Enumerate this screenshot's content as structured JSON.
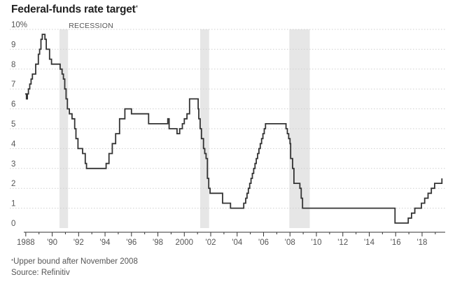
{
  "title": "Federal-funds rate target",
  "title_mark": "*",
  "footnote_mark": "*",
  "footnote": "Upper bound after November 2008",
  "source": "Source: Refinitiv",
  "recession_label": "RECESSION",
  "colors": {
    "line": "#333333",
    "recession": "#e6e6e6",
    "grid": "#cfcfcf",
    "axis": "#333333"
  },
  "chart_data": {
    "type": "line",
    "title": "Federal-funds rate target",
    "xlabel": "",
    "ylabel": "",
    "xlim": [
      1987.85,
      2019.75
    ],
    "ylim": [
      0,
      10
    ],
    "yticks": [
      0,
      1,
      2,
      3,
      4,
      5,
      6,
      7,
      8,
      9,
      10
    ],
    "ytick_labels": [
      "0",
      "1",
      "2",
      "3",
      "4",
      "5",
      "6",
      "7",
      "8",
      "9",
      "10%"
    ],
    "xticks": [
      1988,
      1990,
      1992,
      1994,
      1996,
      1998,
      2000,
      2002,
      2004,
      2006,
      2008,
      2010,
      2012,
      2014,
      2016,
      2018
    ],
    "xtick_labels": [
      "1988",
      "'90",
      "'92",
      "'94",
      "'96",
      "'98",
      "2000",
      "'02",
      "'04",
      "'06",
      "'08",
      "'10",
      "'12",
      "'14",
      "'16",
      "'18"
    ],
    "grid": true,
    "step": true,
    "recessions": [
      [
        1990.55,
        1991.2
      ],
      [
        2001.2,
        2001.88
      ],
      [
        2007.95,
        2009.5
      ]
    ],
    "x": [
      1987.95,
      1988.05,
      1988.12,
      1988.2,
      1988.3,
      1988.4,
      1988.5,
      1988.6,
      1988.75,
      1988.95,
      1989.05,
      1989.15,
      1989.25,
      1989.35,
      1989.45,
      1989.55,
      1989.65,
      1989.8,
      1989.95,
      1990.3,
      1990.6,
      1990.75,
      1990.85,
      1990.95,
      1991.05,
      1991.15,
      1991.3,
      1991.5,
      1991.7,
      1991.8,
      1991.95,
      1992.3,
      1992.5,
      1992.6,
      1992.75,
      1994.08,
      1994.3,
      1994.55,
      1994.8,
      1995.1,
      1995.5,
      1996.0,
      1997.3,
      1998.75,
      1998.85,
      1999.45,
      1999.65,
      1999.85,
      2000.0,
      2000.2,
      2000.4,
      2001.05,
      2001.1,
      2001.2,
      2001.3,
      2001.45,
      2001.55,
      2001.65,
      2001.75,
      2001.85,
      2001.95,
      2002.9,
      2003.5,
      2004.5,
      2004.65,
      2004.75,
      2004.85,
      2004.95,
      2005.05,
      2005.15,
      2005.25,
      2005.35,
      2005.45,
      2005.55,
      2005.65,
      2005.75,
      2005.85,
      2005.95,
      2006.05,
      2006.15,
      2006.3,
      2006.45,
      2007.7,
      2007.8,
      2007.9,
      2008.0,
      2008.05,
      2008.2,
      2008.3,
      2008.75,
      2008.85,
      2008.95,
      2015.95,
      2016.95,
      2017.2,
      2017.45,
      2017.95,
      2018.2,
      2018.45,
      2018.7,
      2018.95,
      2019.5
    ],
    "y": [
      6.75,
      6.5,
      6.75,
      7.0,
      7.25,
      7.5,
      7.75,
      7.75,
      8.25,
      8.75,
      9.0,
      9.5,
      9.75,
      9.75,
      9.5,
      9.0,
      9.0,
      8.5,
      8.25,
      8.25,
      8.0,
      7.75,
      7.5,
      7.0,
      6.5,
      6.0,
      5.75,
      5.5,
      5.0,
      4.5,
      4.0,
      3.75,
      3.25,
      3.0,
      3.0,
      3.25,
      3.75,
      4.25,
      4.75,
      5.5,
      6.0,
      5.75,
      5.25,
      5.5,
      5.0,
      4.75,
      5.0,
      5.25,
      5.5,
      5.75,
      6.5,
      6.0,
      5.5,
      5.0,
      4.5,
      4.0,
      3.75,
      3.5,
      2.5,
      2.0,
      1.75,
      1.25,
      1.0,
      1.25,
      1.5,
      1.75,
      2.0,
      2.25,
      2.5,
      2.75,
      3.0,
      3.25,
      3.5,
      3.75,
      4.0,
      4.25,
      4.5,
      4.75,
      5.0,
      5.25,
      5.25,
      5.25,
      5.0,
      4.75,
      4.5,
      4.25,
      3.5,
      3.0,
      2.25,
      2.0,
      1.5,
      1.0,
      0.25,
      0.5,
      0.75,
      1.0,
      1.25,
      1.5,
      1.75,
      2.0,
      2.25,
      2.5
    ]
  }
}
